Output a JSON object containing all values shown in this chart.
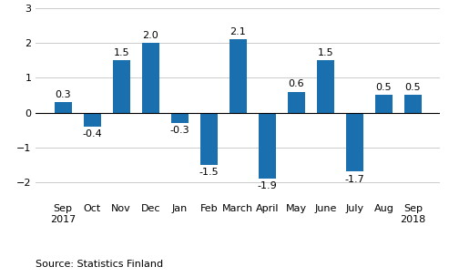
{
  "categories": [
    "Sep\n2017",
    "Oct",
    "Nov",
    "Dec",
    "Jan",
    "Feb",
    "March",
    "April",
    "May",
    "June",
    "July",
    "Aug",
    "Sep\n2018"
  ],
  "values": [
    0.3,
    -0.4,
    1.5,
    2.0,
    -0.3,
    -1.5,
    2.1,
    -1.9,
    0.6,
    1.5,
    -1.7,
    0.5,
    0.5
  ],
  "bar_color": "#1a6faf",
  "ylim": [
    -2.5,
    3.0
  ],
  "yticks": [
    -2,
    -1,
    0,
    1,
    2,
    3
  ],
  "source_text": "Source: Statistics Finland",
  "label_fontsize": 8.0,
  "tick_fontsize": 8.0,
  "source_fontsize": 8.0,
  "bar_width": 0.6
}
